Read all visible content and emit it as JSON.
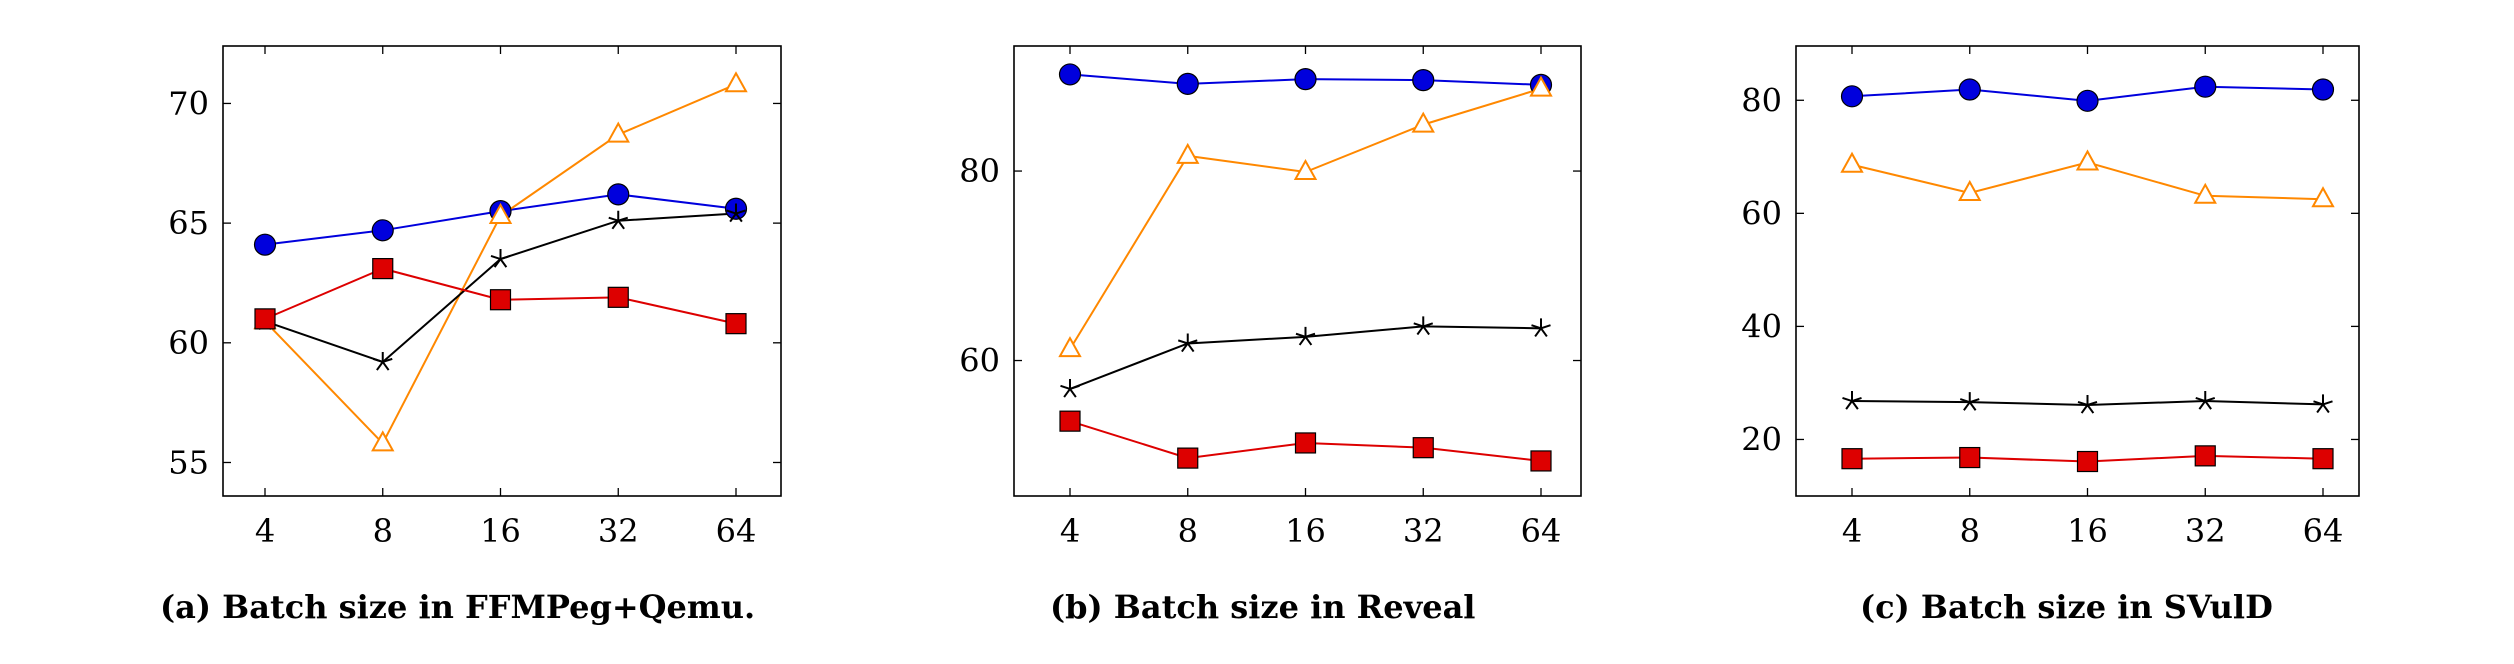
{
  "chart_data": [
    {
      "type": "line",
      "caption": "(a) Batch size in FFMPeg+Qemu.",
      "x_categories": [
        "4",
        "8",
        "16",
        "32",
        "64"
      ],
      "ylim": [
        53.6,
        72.4
      ],
      "yticks": [
        55,
        60,
        65,
        70
      ],
      "ytick_labels": [
        "55",
        "60",
        "65",
        "70"
      ],
      "grid": false,
      "series": [
        {
          "marker": "circle",
          "color": "#0000dd",
          "values": [
            64.1,
            64.7,
            65.5,
            66.2,
            65.6
          ]
        },
        {
          "marker": "triangle",
          "color": "#ff8800",
          "values": [
            60.9,
            55.8,
            65.3,
            68.7,
            70.8
          ]
        },
        {
          "marker": "star",
          "color": "#000000",
          "values": [
            60.9,
            59.2,
            63.5,
            65.1,
            65.4
          ]
        },
        {
          "marker": "square",
          "color": "#dd0000",
          "values": [
            61.0,
            63.1,
            61.8,
            61.9,
            60.8
          ]
        }
      ]
    },
    {
      "type": "line",
      "caption": "(b) Batch size in Reveal",
      "x_categories": [
        "4",
        "8",
        "16",
        "32",
        "64"
      ],
      "ylim": [
        45.7,
        93.2
      ],
      "yticks": [
        60,
        80
      ],
      "ytick_labels": [
        "60",
        "80"
      ],
      "grid": false,
      "series": [
        {
          "marker": "circle",
          "color": "#0000dd",
          "values": [
            90.2,
            89.2,
            89.7,
            89.6,
            89.1
          ]
        },
        {
          "marker": "triangle",
          "color": "#ff8800",
          "values": [
            61.2,
            81.6,
            79.9,
            84.9,
            88.7
          ]
        },
        {
          "marker": "star",
          "color": "#000000",
          "values": [
            57.0,
            61.8,
            62.5,
            63.6,
            63.4
          ]
        },
        {
          "marker": "square",
          "color": "#dd0000",
          "values": [
            53.6,
            49.7,
            51.3,
            50.8,
            49.4
          ]
        }
      ]
    },
    {
      "type": "line",
      "caption": "(c) Batch size in SVulD",
      "x_categories": [
        "4",
        "8",
        "16",
        "32",
        "64"
      ],
      "ylim": [
        10,
        89.6
      ],
      "yticks": [
        20,
        40,
        60,
        80
      ],
      "ytick_labels": [
        "20",
        "40",
        "60",
        "80"
      ],
      "grid": false,
      "series": [
        {
          "marker": "circle",
          "color": "#0000dd",
          "values": [
            80.7,
            81.9,
            79.9,
            82.4,
            81.9
          ]
        },
        {
          "marker": "triangle",
          "color": "#ff8800",
          "values": [
            68.6,
            63.6,
            69.0,
            63.1,
            62.5
          ]
        },
        {
          "marker": "star",
          "color": "#000000",
          "values": [
            26.8,
            26.6,
            26.1,
            26.8,
            26.2
          ]
        },
        {
          "marker": "square",
          "color": "#dd0000",
          "values": [
            16.6,
            16.8,
            16.1,
            17.1,
            16.6
          ]
        }
      ]
    }
  ]
}
